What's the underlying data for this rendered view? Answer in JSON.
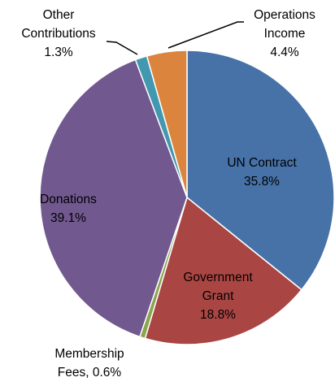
{
  "chart_data": {
    "type": "pie",
    "slices": [
      {
        "name": "UN Contract",
        "value": 35.8,
        "label_lines": [
          "UN Contract",
          "35.8%"
        ],
        "color": "#4672A8"
      },
      {
        "name": "Government Grant",
        "value": 18.8,
        "label_lines": [
          "Government",
          "Grant",
          "18.8%"
        ],
        "color": "#A94643"
      },
      {
        "name": "Membership Fees",
        "value": 0.6,
        "label_lines": [
          "Membership",
          "Fees, 0.6%"
        ],
        "color": "#89A54E"
      },
      {
        "name": "Donations",
        "value": 39.1,
        "label_lines": [
          "Donations",
          "39.1%"
        ],
        "color": "#71588F"
      },
      {
        "name": "Other Contributions",
        "value": 1.3,
        "label_lines": [
          "Other",
          "Contributions",
          "1.3%"
        ],
        "color": "#4198AF"
      },
      {
        "name": "Operations Income",
        "value": 4.4,
        "label_lines": [
          "Operations",
          "Income",
          "4.4%"
        ],
        "color": "#DB843D"
      }
    ],
    "start_angle_deg": 0,
    "direction": "clockwise",
    "legend": "none"
  }
}
